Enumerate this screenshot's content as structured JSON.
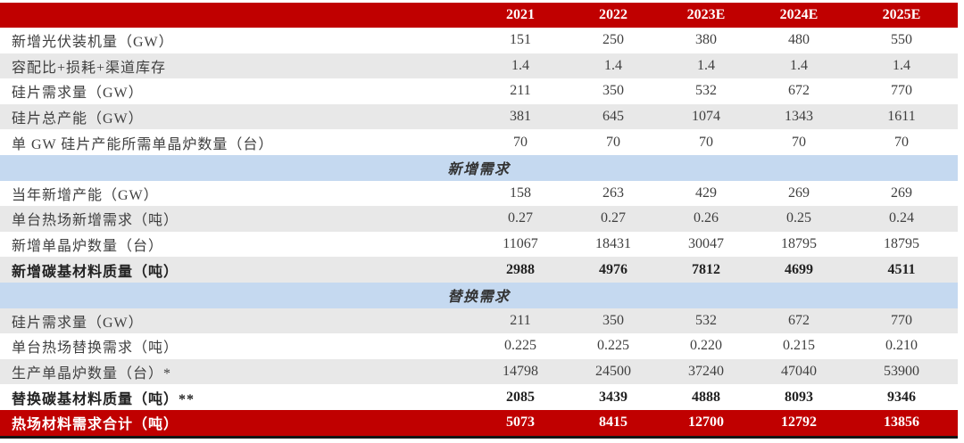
{
  "table": {
    "columns": [
      "2021",
      "2022",
      "2023E",
      "2024E",
      "2025E"
    ],
    "rows": [
      {
        "label": "新增光伏装机量（GW）",
        "values": [
          "151",
          "250",
          "380",
          "480",
          "550"
        ],
        "style": "plain"
      },
      {
        "label": "容配比+损耗+渠道库存",
        "values": [
          "1.4",
          "1.4",
          "1.4",
          "1.4",
          "1.4"
        ],
        "style": "shaded"
      },
      {
        "label": "硅片需求量（GW）",
        "values": [
          "211",
          "350",
          "532",
          "672",
          "770"
        ],
        "style": "plain"
      },
      {
        "label": "硅片总产能（GW）",
        "values": [
          "381",
          "645",
          "1074",
          "1343",
          "1611"
        ],
        "style": "shaded"
      },
      {
        "label": "单 GW 硅片产能所需单晶炉数量（台）",
        "values": [
          "70",
          "70",
          "70",
          "70",
          "70"
        ],
        "style": "plain"
      },
      {
        "label": "新增需求",
        "style": "section"
      },
      {
        "label": "当年新增产能（GW）",
        "values": [
          "158",
          "263",
          "429",
          "269",
          "269"
        ],
        "style": "plain"
      },
      {
        "label": "单台热场新增需求（吨）",
        "values": [
          "0.27",
          "0.27",
          "0.26",
          "0.25",
          "0.24"
        ],
        "style": "shaded"
      },
      {
        "label": "新增单晶炉数量（台）",
        "values": [
          "11067",
          "18431",
          "30047",
          "18795",
          "18795"
        ],
        "style": "plain"
      },
      {
        "label": "新增碳基材料质量（吨）",
        "values": [
          "2988",
          "4976",
          "7812",
          "4699",
          "4511"
        ],
        "style": "shaded",
        "bold": true
      },
      {
        "label": "替换需求",
        "style": "section"
      },
      {
        "label": "硅片需求量（GW）",
        "values": [
          "211",
          "350",
          "532",
          "672",
          "770"
        ],
        "style": "shaded"
      },
      {
        "label": "单台热场替换需求（吨）",
        "values": [
          "0.225",
          "0.225",
          "0.220",
          "0.215",
          "0.210"
        ],
        "style": "plain"
      },
      {
        "label": "生产单晶炉数量（台）*",
        "values": [
          "14798",
          "24500",
          "37240",
          "47040",
          "53900"
        ],
        "style": "shaded"
      },
      {
        "label": "替换碳基材料质量（吨）**",
        "values": [
          "2085",
          "3439",
          "4888",
          "8093",
          "9346"
        ],
        "style": "plain",
        "bold": true
      },
      {
        "label": "热场材料需求合计（吨）",
        "values": [
          "5073",
          "8415",
          "12700",
          "12792",
          "13856"
        ],
        "style": "total"
      }
    ]
  },
  "colors": {
    "header_red": "#C00000",
    "section_blue": "#C5D9F0",
    "row_gray": "#E8E8E8",
    "total_red": "#C00000",
    "text": "#3F3F3F"
  }
}
